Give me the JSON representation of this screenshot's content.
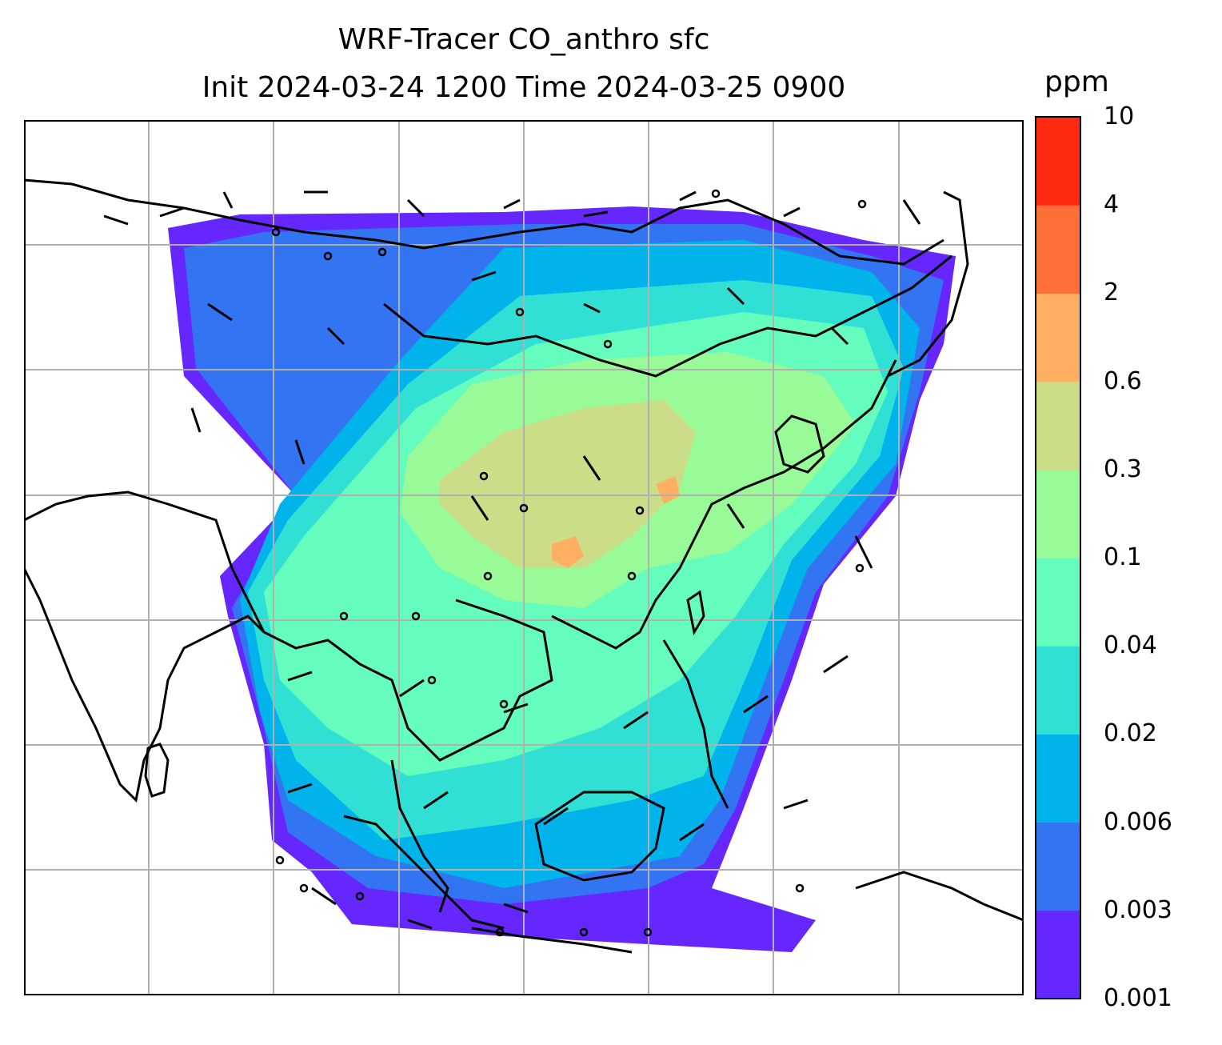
{
  "title": {
    "line1": "WRF-Tracer CO_anthro sfc",
    "line2": "Init 2024-03-24 1200 Time 2024-03-25 0900"
  },
  "colorbar": {
    "unit": "ppm",
    "levels": [
      "0.001",
      "0.003",
      "0.006",
      "0.02",
      "0.04",
      "0.1",
      "0.3",
      "0.6",
      "2",
      "4",
      "10"
    ],
    "colors": [
      "#6627fe",
      "#3374f2",
      "#00b3ea",
      "#31e0d5",
      "#65fdbd",
      "#98fb98",
      "#ccdd88",
      "#feaf62",
      "#fe6f38",
      "#fe2a12"
    ]
  },
  "map": {
    "gridline_color": "#b0b0b0",
    "coastline_color": "#000000",
    "field_levels_shown": [
      "0.001",
      "0.003",
      "0.006",
      "0.02",
      "0.04",
      "0.1",
      "0.3",
      "0.6",
      "2"
    ]
  }
}
